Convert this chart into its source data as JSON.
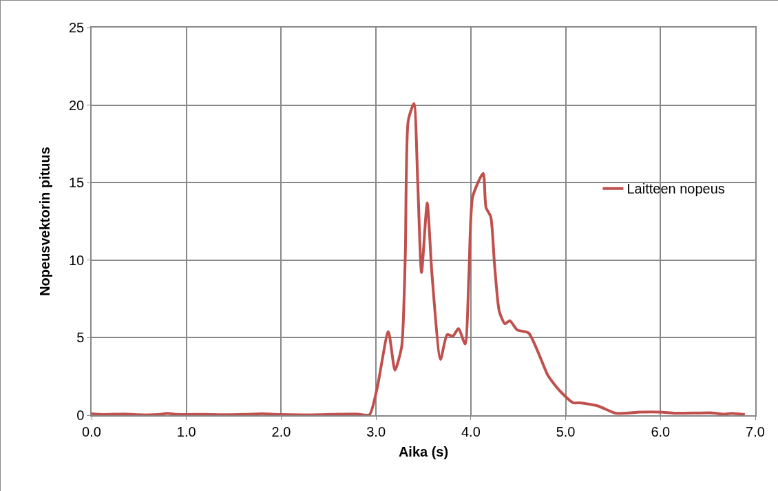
{
  "chart_data": {
    "type": "line",
    "xlabel": "Aika (s)",
    "ylabel": "Nopeusvektorin pituus",
    "xlim": [
      0,
      7
    ],
    "xticks": [
      {
        "value": 0,
        "label": "0.0"
      },
      {
        "value": 1,
        "label": "1.0"
      },
      {
        "value": 2,
        "label": "2.0"
      },
      {
        "value": 3,
        "label": "3.0"
      },
      {
        "value": 4,
        "label": "4.0"
      },
      {
        "value": 5,
        "label": "5.0"
      },
      {
        "value": 6,
        "label": "6.0"
      },
      {
        "value": 7,
        "label": "7.0"
      }
    ],
    "ylim": [
      0,
      25
    ],
    "yticks": [
      0,
      5,
      10,
      15,
      20,
      25
    ],
    "grid": true,
    "legend": "right",
    "marker": "none",
    "line_style": "solid",
    "series": [
      {
        "name": "Laitteen nopeus",
        "color": "#c0504d",
        "x": [
          0,
          0.1,
          0.35,
          0.5,
          0.7,
          0.8,
          0.9,
          1.2,
          1.4,
          1.6,
          1.8,
          2.0,
          2.4,
          2.6,
          2.8,
          2.93,
          3.01,
          3.13,
          3.2,
          3.27,
          3.29,
          3.31,
          3.34,
          3.4,
          3.44,
          3.48,
          3.54,
          3.59,
          3.68,
          3.75,
          3.81,
          3.87,
          3.94,
          3.98,
          4.02,
          4.13,
          4.16,
          4.21,
          4.25,
          4.3,
          4.36,
          4.41,
          4.49,
          4.61,
          4.81,
          4.88,
          4.95,
          5.08,
          5.15,
          5.34,
          5.53,
          5.78,
          6.0,
          6.16,
          6.53,
          6.67,
          6.75,
          6.89
        ],
        "values": [
          0.1,
          0.05,
          0.08,
          0.03,
          0.04,
          0.12,
          0.05,
          0.06,
          0.03,
          0.05,
          0.1,
          0.04,
          0.03,
          0.07,
          0.08,
          0.03,
          1.7,
          5.4,
          2.9,
          4.4,
          6.4,
          10.6,
          19.0,
          20.1,
          15.0,
          9.2,
          13.7,
          9.1,
          3.6,
          5.2,
          5.1,
          5.6,
          4.6,
          9.1,
          14.1,
          15.6,
          13.4,
          12.8,
          9.7,
          6.7,
          5.9,
          6.1,
          5.5,
          5.3,
          2.6,
          2.0,
          1.5,
          0.8,
          0.8,
          0.6,
          0.13,
          0.2,
          0.2,
          0.13,
          0.15,
          0.07,
          0.12,
          0.05
        ]
      }
    ]
  }
}
